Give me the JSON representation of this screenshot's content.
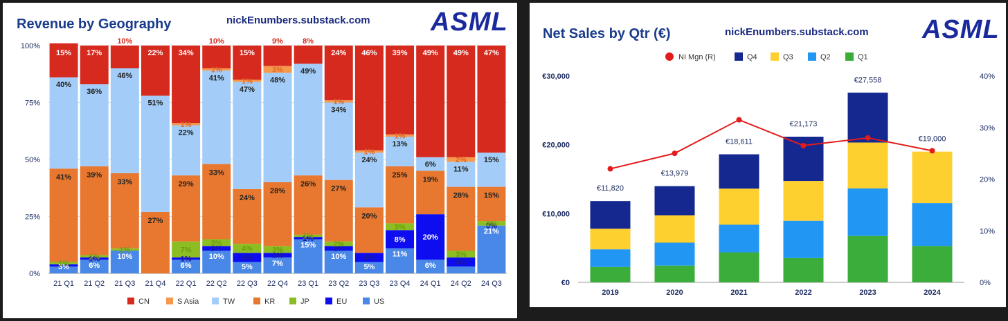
{
  "left": {
    "title": "Revenue by Geography",
    "site": "nickEnumbers.substack.com",
    "logo": "ASML"
  },
  "right": {
    "title": "Net Sales by Qtr (€)",
    "site": "nickEnumbers.substack.com",
    "logo": "ASML"
  },
  "colors": {
    "CN": "#d62a1f",
    "S Asia": "#f6994d",
    "TW": "#a3cdf8",
    "KR": "#e8782f",
    "JP": "#8cbe23",
    "EU": "#0d0df0",
    "US": "#4a88e8",
    "Q1": "#3aad3a",
    "Q2": "#2196f3",
    "Q3": "#fdd030",
    "Q4": "#142890",
    "NI": "#e31b1b"
  },
  "chart_data": [
    {
      "type": "bar",
      "stacked": true,
      "title": "Revenue by Geography",
      "categories": [
        "21 Q1",
        "21 Q2",
        "21 Q3",
        "21 Q4",
        "22 Q1",
        "22 Q2",
        "22 Q3",
        "22 Q4",
        "23 Q1",
        "23 Q2",
        "23 Q3",
        "23 Q4",
        "24 Q1",
        "24 Q2",
        "24 Q3"
      ],
      "y_ticks": [
        "0%",
        "25%",
        "50%",
        "75%",
        "100%"
      ],
      "legend": [
        "CN",
        "S Asia",
        "TW",
        "KR",
        "JP",
        "EU",
        "US"
      ],
      "series": [
        {
          "name": "US",
          "values": [
            3,
            6,
            10,
            0,
            6,
            10,
            5,
            7,
            15,
            10,
            5,
            11,
            6,
            3,
            21
          ],
          "labels": [
            "3%",
            "6%",
            "10%",
            "",
            "6%",
            "10%",
            "5%",
            "7%",
            "15%",
            "10%",
            "5%",
            "11%",
            "6%",
            "",
            "21%"
          ]
        },
        {
          "name": "EU",
          "values": [
            1,
            1,
            0,
            0,
            1,
            2,
            4,
            2,
            1,
            2,
            4,
            8,
            20,
            4,
            0
          ],
          "labels": [
            "",
            "1%",
            "",
            "",
            "1%",
            "2%",
            "4%",
            "2%",
            "1%",
            "2%",
            "4%",
            "8%",
            "20%",
            "4%",
            "0%"
          ]
        },
        {
          "name": "JP",
          "values": [
            1,
            1,
            1,
            0,
            7,
            3,
            4,
            3,
            1,
            2,
            0,
            3,
            0,
            3,
            2
          ],
          "labels": [
            "1%",
            "1%",
            "1%",
            "",
            "7%",
            "3%",
            "4%",
            "3%",
            "1%",
            "2%",
            "",
            "3%",
            "",
            "3%",
            "2%"
          ]
        },
        {
          "name": "KR",
          "values": [
            41,
            39,
            33,
            27,
            29,
            33,
            24,
            28,
            26,
            27,
            20,
            25,
            19,
            28,
            15
          ],
          "labels": [
            "41%",
            "39%",
            "33%",
            "27%",
            "29%",
            "33%",
            "24%",
            "28%",
            "26%",
            "27%",
            "20%",
            "25%",
            "19%",
            "28%",
            "15%"
          ]
        },
        {
          "name": "TW",
          "values": [
            40,
            36,
            46,
            51,
            22,
            41,
            47,
            48,
            49,
            34,
            24,
            13,
            6,
            11,
            15
          ],
          "labels": [
            "40%",
            "36%",
            "46%",
            "51%",
            "22%",
            "41%",
            "47%",
            "48%",
            "49%",
            "34%",
            "24%",
            "13%",
            "6%",
            "11%",
            "15%"
          ]
        },
        {
          "name": "S Asia",
          "values": [
            0,
            0,
            0,
            0,
            1,
            1,
            1,
            3,
            0,
            1,
            1,
            1,
            0,
            2,
            0
          ],
          "labels": [
            "",
            "",
            "",
            "",
            "1%",
            "1%",
            "1%",
            "3%",
            "",
            "1%",
            "1%",
            "1%",
            "",
            "2%",
            ""
          ]
        },
        {
          "name": "CN",
          "values": [
            15,
            17,
            10,
            22,
            34,
            10,
            15,
            9,
            8,
            24,
            46,
            39,
            49,
            49,
            47
          ],
          "labels": [
            "15%",
            "17%",
            "10%",
            "22%",
            "34%",
            "10%",
            "15%",
            "9%",
            "8%",
            "24%",
            "46%",
            "39%",
            "49%",
            "49%",
            "47%"
          ]
        }
      ]
    },
    {
      "type": "bar",
      "stacked": true,
      "title": "Net Sales by Qtr (€)",
      "categories": [
        "2019",
        "2020",
        "2021",
        "2022",
        "2023",
        "2024"
      ],
      "y_ticks": [
        "€0",
        "€10,000",
        "€20,000",
        "€30,000"
      ],
      "y2_ticks": [
        "0%",
        "10%",
        "20%",
        "30%",
        "40%"
      ],
      "ylim": [
        0,
        30000
      ],
      "y2lim": [
        0,
        40
      ],
      "legend": [
        "NI Mgn (R)",
        "Q4",
        "Q3",
        "Q2",
        "Q1"
      ],
      "series": [
        {
          "name": "Q1",
          "values": [
            2230,
            2440,
            4360,
            3530,
            6750,
            5290
          ]
        },
        {
          "name": "Q2",
          "values": [
            2570,
            3330,
            4020,
            5430,
            6900,
            6240
          ]
        },
        {
          "name": "Q3",
          "values": [
            2990,
            3960,
            5240,
            5780,
            6670,
            7470
          ]
        },
        {
          "name": "Q4",
          "values": [
            4030,
            4250,
            4990,
            6430,
            7240,
            0
          ]
        }
      ],
      "totals": [
        11820,
        13979,
        18611,
        21173,
        27558,
        19000
      ],
      "total_labels": [
        "€11,820",
        "€13,979",
        "€18,611",
        "€21,173",
        "€27,558",
        "€19,000"
      ],
      "ni_margin": {
        "name": "NI Mgn (R)",
        "values": [
          22,
          25,
          31.5,
          26.5,
          28,
          25.5
        ]
      }
    }
  ]
}
